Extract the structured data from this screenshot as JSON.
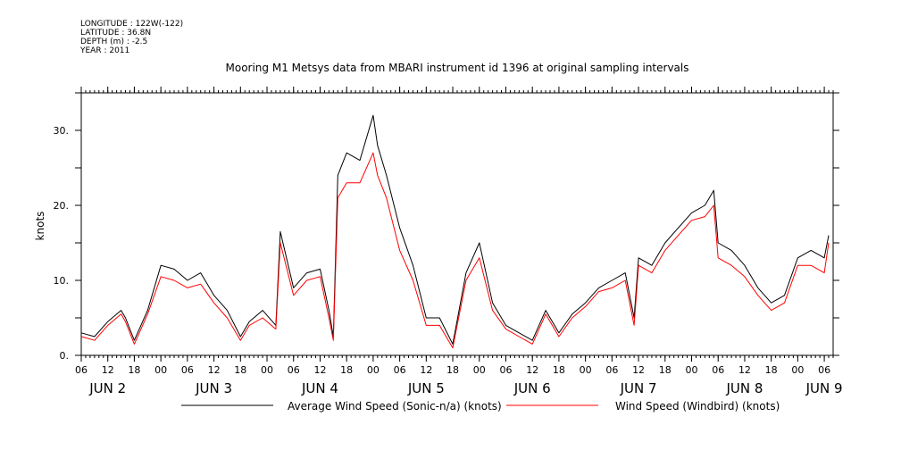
{
  "header": {
    "longitude": "LONGITUDE : 122W(-122)",
    "latitude": "LATITUDE : 36.8N",
    "depth": "DEPTH (m) : -2.5",
    "year": "YEAR : 2011"
  },
  "chart_data": {
    "type": "line",
    "title": "Mooring M1 Metsys data from MBARI instrument id 1396 at original sampling intervals",
    "xlabel": "",
    "ylabel": "knots",
    "xlim": [
      "2011-06-02T06:00",
      "2011-06-09T08:00"
    ],
    "ylim": [
      0,
      35
    ],
    "yticks": [
      0,
      10,
      20,
      30
    ],
    "ytick_labels": [
      "0.",
      "10.",
      "20.",
      "30."
    ],
    "xtick_hour_labels": [
      "06",
      "12",
      "18",
      "00",
      "06",
      "12",
      "18",
      "00",
      "06",
      "12",
      "18",
      "00",
      "06",
      "12",
      "18",
      "00",
      "06",
      "12",
      "18",
      "00",
      "06",
      "12",
      "18",
      "00",
      "06",
      "12",
      "18",
      "00",
      "06"
    ],
    "xtick_hour_times": [
      "2011-06-02T06:00",
      "2011-06-02T12:00",
      "2011-06-02T18:00",
      "2011-06-03T00:00",
      "2011-06-03T06:00",
      "2011-06-03T12:00",
      "2011-06-03T18:00",
      "2011-06-04T00:00",
      "2011-06-04T06:00",
      "2011-06-04T12:00",
      "2011-06-04T18:00",
      "2011-06-05T00:00",
      "2011-06-05T06:00",
      "2011-06-05T12:00",
      "2011-06-05T18:00",
      "2011-06-06T00:00",
      "2011-06-06T06:00",
      "2011-06-06T12:00",
      "2011-06-06T18:00",
      "2011-06-07T00:00",
      "2011-06-07T06:00",
      "2011-06-07T12:00",
      "2011-06-07T18:00",
      "2011-06-08T00:00",
      "2011-06-08T06:00",
      "2011-06-08T12:00",
      "2011-06-08T18:00",
      "2011-06-09T00:00",
      "2011-06-09T06:00"
    ],
    "xtick_day_labels": [
      "JUN  2",
      "JUN  3",
      "JUN  4",
      "JUN  5",
      "JUN  6",
      "JUN  7",
      "JUN  8",
      "JUN  9"
    ],
    "xtick_day_times": [
      "2011-06-02T12:00",
      "2011-06-03T12:00",
      "2011-06-04T12:00",
      "2011-06-05T12:00",
      "2011-06-06T12:00",
      "2011-06-07T12:00",
      "2011-06-08T12:00",
      "2011-06-09T06:00"
    ],
    "legend_position": "bottom",
    "series": [
      {
        "name": "Average Wind Speed (Sonic-n/a) (knots)",
        "color": "#000000",
        "x": [
          "2011-06-02T06:00",
          "2011-06-02T09:00",
          "2011-06-02T12:00",
          "2011-06-02T15:00",
          "2011-06-02T16:00",
          "2011-06-02T18:00",
          "2011-06-02T21:00",
          "2011-06-03T00:00",
          "2011-06-03T03:00",
          "2011-06-03T06:00",
          "2011-06-03T09:00",
          "2011-06-03T12:00",
          "2011-06-03T15:00",
          "2011-06-03T18:00",
          "2011-06-03T20:00",
          "2011-06-03T23:00",
          "2011-06-04T02:00",
          "2011-06-04T03:00",
          "2011-06-04T06:00",
          "2011-06-04T09:00",
          "2011-06-04T12:00",
          "2011-06-04T14:00",
          "2011-06-04T15:00",
          "2011-06-04T16:00",
          "2011-06-04T18:00",
          "2011-06-04T21:00",
          "2011-06-05T00:00",
          "2011-06-05T01:00",
          "2011-06-05T03:00",
          "2011-06-05T06:00",
          "2011-06-05T09:00",
          "2011-06-05T12:00",
          "2011-06-05T15:00",
          "2011-06-05T18:00",
          "2011-06-05T21:00",
          "2011-06-06T00:00",
          "2011-06-06T03:00",
          "2011-06-06T06:00",
          "2011-06-06T09:00",
          "2011-06-06T12:00",
          "2011-06-06T15:00",
          "2011-06-06T18:00",
          "2011-06-06T21:00",
          "2011-06-07T00:00",
          "2011-06-07T03:00",
          "2011-06-07T06:00",
          "2011-06-07T09:00",
          "2011-06-07T11:00",
          "2011-06-07T12:00",
          "2011-06-07T15:00",
          "2011-06-07T18:00",
          "2011-06-07T21:00",
          "2011-06-08T00:00",
          "2011-06-08T03:00",
          "2011-06-08T05:00",
          "2011-06-08T06:00",
          "2011-06-08T09:00",
          "2011-06-08T12:00",
          "2011-06-08T15:00",
          "2011-06-08T18:00",
          "2011-06-08T21:00",
          "2011-06-09T00:00",
          "2011-06-09T03:00",
          "2011-06-09T06:00",
          "2011-06-09T07:00"
        ],
        "y": [
          3,
          2.5,
          4.5,
          6,
          5,
          2,
          6,
          12,
          11.5,
          10,
          11,
          8,
          6,
          2.5,
          4.5,
          6,
          4,
          16.5,
          9,
          11,
          11.5,
          6,
          2.5,
          24,
          27,
          26,
          32,
          28,
          24,
          17,
          12,
          5,
          5,
          1.5,
          11,
          15,
          7,
          4,
          3,
          2,
          6,
          3,
          5.5,
          7,
          9,
          10,
          11,
          5,
          13,
          12,
          15,
          17,
          19,
          20,
          22,
          15,
          14,
          12,
          9,
          7,
          8,
          13,
          14,
          13,
          16
        ]
      },
      {
        "name": "Wind Speed (Windbird) (knots)",
        "color": "#ff0000",
        "x": [
          "2011-06-02T06:00",
          "2011-06-02T09:00",
          "2011-06-02T12:00",
          "2011-06-02T15:00",
          "2011-06-02T16:00",
          "2011-06-02T18:00",
          "2011-06-02T21:00",
          "2011-06-03T00:00",
          "2011-06-03T03:00",
          "2011-06-03T06:00",
          "2011-06-03T09:00",
          "2011-06-03T12:00",
          "2011-06-03T15:00",
          "2011-06-03T18:00",
          "2011-06-03T20:00",
          "2011-06-03T23:00",
          "2011-06-04T02:00",
          "2011-06-04T03:00",
          "2011-06-04T06:00",
          "2011-06-04T09:00",
          "2011-06-04T12:00",
          "2011-06-04T14:00",
          "2011-06-04T15:00",
          "2011-06-04T16:00",
          "2011-06-04T18:00",
          "2011-06-04T21:00",
          "2011-06-05T00:00",
          "2011-06-05T01:00",
          "2011-06-05T03:00",
          "2011-06-05T06:00",
          "2011-06-05T09:00",
          "2011-06-05T12:00",
          "2011-06-05T15:00",
          "2011-06-05T18:00",
          "2011-06-05T21:00",
          "2011-06-06T00:00",
          "2011-06-06T03:00",
          "2011-06-06T06:00",
          "2011-06-06T09:00",
          "2011-06-06T12:00",
          "2011-06-06T15:00",
          "2011-06-06T18:00",
          "2011-06-06T21:00",
          "2011-06-07T00:00",
          "2011-06-07T03:00",
          "2011-06-07T06:00",
          "2011-06-07T09:00",
          "2011-06-07T11:00",
          "2011-06-07T12:00",
          "2011-06-07T15:00",
          "2011-06-07T18:00",
          "2011-06-07T21:00",
          "2011-06-08T00:00",
          "2011-06-08T03:00",
          "2011-06-08T05:00",
          "2011-06-08T06:00",
          "2011-06-08T09:00",
          "2011-06-08T12:00",
          "2011-06-08T15:00",
          "2011-06-08T18:00",
          "2011-06-08T21:00",
          "2011-06-09T00:00",
          "2011-06-09T03:00",
          "2011-06-09T06:00",
          "2011-06-09T07:00"
        ],
        "y": [
          2.5,
          2,
          4,
          5.5,
          4.5,
          1.5,
          5.5,
          10.5,
          10,
          9,
          9.5,
          7,
          5,
          2,
          4,
          5,
          3.5,
          15,
          8,
          10,
          10.5,
          5,
          2,
          21,
          23,
          23,
          27,
          24,
          21,
          14,
          10,
          4,
          4,
          1,
          10,
          13,
          6,
          3.5,
          2.5,
          1.5,
          5.5,
          2.5,
          5,
          6.5,
          8.5,
          9,
          10,
          4,
          12,
          11,
          14,
          16,
          18,
          18.5,
          20,
          13,
          12,
          10.5,
          8,
          6,
          7,
          12,
          12,
          11,
          15
        ]
      }
    ]
  }
}
